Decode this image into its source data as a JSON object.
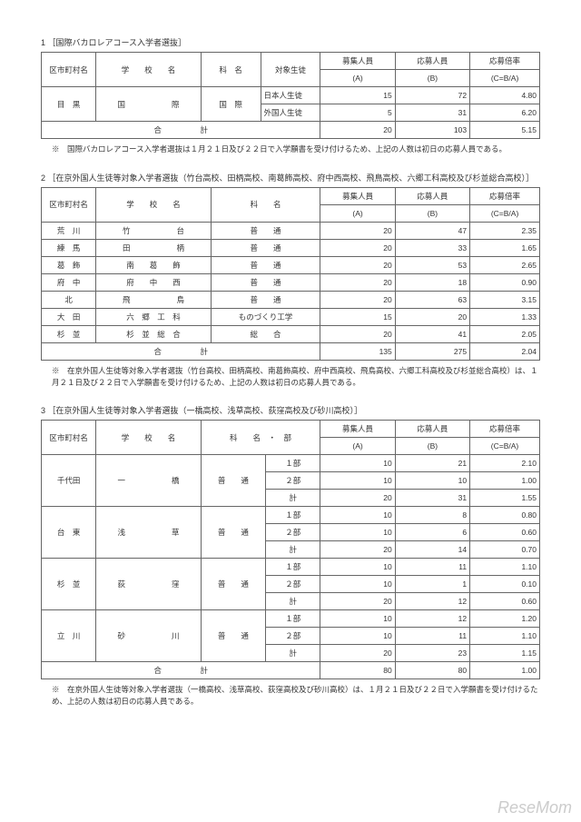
{
  "watermark": "ReseMom",
  "s1": {
    "title": "1 ［国際バカロレアコース入学者選抜］",
    "headers": {
      "ward": "区市町村名",
      "school": "学　　校　　名",
      "dept": "科　名",
      "type": "対象生徒",
      "boshu": "募集人員",
      "boshuSub": "(A)",
      "oubo": "応募人員",
      "ouboSub": "(B)",
      "rate": "応募倍率",
      "rateSub": "(C=B/A)"
    },
    "rows": [
      {
        "ward": "目　黒",
        "school": "国　　　　　　際",
        "dept": "国　際",
        "type": "日本人生徒",
        "a": "15",
        "b": "72",
        "c": "4.80"
      },
      {
        "ward": "",
        "school": "",
        "dept": "",
        "type": "外国人生徒",
        "a": "5",
        "b": "31",
        "c": "6.20"
      }
    ],
    "total": {
      "label": "合　　　　　計",
      "a": "20",
      "b": "103",
      "c": "5.15"
    },
    "note": "※　国際バカロレアコース入学者選抜は１月２１日及び２２日で入学願書を受け付けるため、上記の人数は初日の応募人員である。"
  },
  "s2": {
    "title": "2 ［在京外国人生徒等対象入学者選抜（竹台高校、田柄高校、南葛飾高校、府中西高校、飛鳥高校、六郷工科高校及び杉並総合高校）］",
    "headers": {
      "ward": "区市町村名",
      "school": "学　　校　　名",
      "dept": "科　　名",
      "boshu": "募集人員",
      "boshuSub": "(A)",
      "oubo": "応募人員",
      "ouboSub": "(B)",
      "rate": "応募倍率",
      "rateSub": "(C=B/A)"
    },
    "rows": [
      {
        "ward": "荒　川",
        "school": "竹　　　　　　台",
        "dept": "普　　通",
        "a": "20",
        "b": "47",
        "c": "2.35"
      },
      {
        "ward": "練　馬",
        "school": "田　　　　　　柄",
        "dept": "普　　通",
        "a": "20",
        "b": "33",
        "c": "1.65"
      },
      {
        "ward": "葛　飾",
        "school": "南　　葛　　飾",
        "dept": "普　　通",
        "a": "20",
        "b": "53",
        "c": "2.65"
      },
      {
        "ward": "府　中",
        "school": "府　　中　　西",
        "dept": "普　　通",
        "a": "20",
        "b": "18",
        "c": "0.90"
      },
      {
        "ward": "北",
        "school": "飛　　　　　　鳥",
        "dept": "普　　通",
        "a": "20",
        "b": "63",
        "c": "3.15"
      },
      {
        "ward": "大　田",
        "school": "六　郷　工　科",
        "dept": "ものづくり工学",
        "a": "15",
        "b": "20",
        "c": "1.33"
      },
      {
        "ward": "杉　並",
        "school": "杉　並　総　合",
        "dept": "総　　合",
        "a": "20",
        "b": "41",
        "c": "2.05"
      }
    ],
    "total": {
      "label": "合　　　　　計",
      "a": "135",
      "b": "275",
      "c": "2.04"
    },
    "note": "※　在京外国人生徒等対象入学者選抜（竹台高校、田柄高校、南葛飾高校、府中西高校、飛鳥高校、六郷工科高校及び杉並総合高校）は、１月２１日及び２２日で入学願書を受け付けるため、上記の人数は初日の応募人員である。"
  },
  "s3": {
    "title": "3 ［在京外国人生徒等対象入学者選抜（一橋高校、浅草高校、荻窪高校及び砂川高校）］",
    "headers": {
      "ward": "区市町村名",
      "school": "学　　校　　名",
      "dept": "科　　名　・　部",
      "boshu": "募集人員",
      "boshuSub": "(A)",
      "oubo": "応募人員",
      "ouboSub": "(B)",
      "rate": "応募倍率",
      "rateSub": "(C=B/A)"
    },
    "groups": [
      {
        "ward": "千代田",
        "school": "一　　　　　　橋",
        "dept": "普　　通",
        "rows": [
          {
            "bu": "１部",
            "a": "10",
            "b": "21",
            "c": "2.10"
          },
          {
            "bu": "２部",
            "a": "10",
            "b": "10",
            "c": "1.00"
          },
          {
            "bu": "計",
            "a": "20",
            "b": "31",
            "c": "1.55"
          }
        ]
      },
      {
        "ward": "台　東",
        "school": "浅　　　　　　草",
        "dept": "普　　通",
        "rows": [
          {
            "bu": "１部",
            "a": "10",
            "b": "8",
            "c": "0.80"
          },
          {
            "bu": "２部",
            "a": "10",
            "b": "6",
            "c": "0.60"
          },
          {
            "bu": "計",
            "a": "20",
            "b": "14",
            "c": "0.70"
          }
        ]
      },
      {
        "ward": "杉　並",
        "school": "荻　　　　　　窪",
        "dept": "普　　通",
        "rows": [
          {
            "bu": "１部",
            "a": "10",
            "b": "11",
            "c": "1.10"
          },
          {
            "bu": "２部",
            "a": "10",
            "b": "1",
            "c": "0.10"
          },
          {
            "bu": "計",
            "a": "20",
            "b": "12",
            "c": "0.60"
          }
        ]
      },
      {
        "ward": "立　川",
        "school": "砂　　　　　　川",
        "dept": "普　　通",
        "rows": [
          {
            "bu": "１部",
            "a": "10",
            "b": "12",
            "c": "1.20"
          },
          {
            "bu": "２部",
            "a": "10",
            "b": "11",
            "c": "1.10"
          },
          {
            "bu": "計",
            "a": "20",
            "b": "23",
            "c": "1.15"
          }
        ]
      }
    ],
    "total": {
      "label": "合　　　　　計",
      "a": "80",
      "b": "80",
      "c": "1.00"
    },
    "note": "※　在京外国人生徒等対象入学者選抜（一橋高校、浅草高校、荻窪高校及び砂川高校）は、１月２１日及び２２日で入学願書を受け付けるため、上記の人数は初日の応募人員である。"
  }
}
